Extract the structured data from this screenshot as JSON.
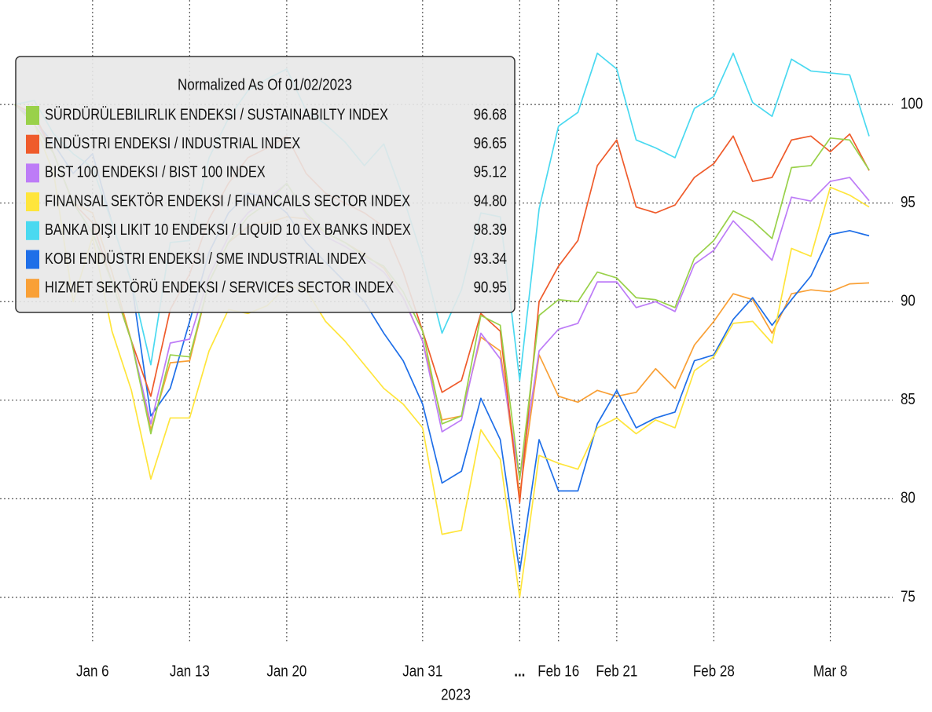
{
  "chart_data": {
    "type": "line",
    "legend_title": "Normalized As Of 01/02/2023",
    "x_label": "2023",
    "categories": [
      null,
      null,
      null,
      null,
      "Jan 6",
      null,
      null,
      null,
      null,
      "Jan 13",
      null,
      null,
      null,
      null,
      "Jan 20",
      null,
      null,
      null,
      null,
      null,
      null,
      "Jan 31",
      null,
      null,
      null,
      null,
      "...",
      null,
      "Feb 16",
      null,
      null,
      "Feb 21",
      null,
      null,
      null,
      null,
      "Feb 28",
      null,
      null,
      null,
      null,
      null,
      "Mar 8",
      null,
      null
    ],
    "ylim": [
      72.65,
      105.3
    ],
    "yticks": [
      75,
      80,
      85,
      90,
      95,
      100
    ],
    "grid": true,
    "legend": "upper left",
    "series": [
      {
        "name": "SÜRDÜRÜLEBILIRLIK ENDEKSI / SUSTAINABILTY INDEX",
        "legend_value": "96.68",
        "color": "#99d14a",
        "values": [
          100,
          99,
          97.5,
          95,
          93.5,
          91,
          88,
          83.3,
          87.3,
          87.2,
          91,
          93,
          94.3,
          95,
          96,
          94.5,
          93.5,
          93,
          92.3,
          91.8,
          90.5,
          88.5,
          83.8,
          84.2,
          89.3,
          88.8,
          81,
          89.3,
          90.1,
          90,
          91.5,
          91.2,
          90.2,
          90.1,
          89.7,
          92.2,
          93.1,
          94.6,
          94.1,
          93.2,
          96.8,
          96.9,
          98.3,
          98.2,
          96.68
        ]
      },
      {
        "name": "ENDÜSTRI ENDEKSI / INDUSTRIAL INDEX",
        "legend_value": "96.65",
        "color": "#ef5b2b",
        "values": [
          100,
          99.5,
          97.5,
          95,
          94,
          91,
          88,
          85.2,
          89.6,
          91.4,
          94.2,
          96,
          97.3,
          97.8,
          98.4,
          96.5,
          95.5,
          95,
          94.5,
          93.8,
          91.5,
          88.5,
          85.4,
          86,
          89.4,
          88.5,
          79.8,
          90,
          91.8,
          93.1,
          96.9,
          98.2,
          94.8,
          94.5,
          94.9,
          96.3,
          97,
          98.4,
          96.1,
          96.3,
          98.2,
          98.4,
          97.6,
          98.5,
          96.65
        ]
      },
      {
        "name": "BIST 100 ENDEKSI / BIST 100 INDEX",
        "legend_value": "95.12",
        "color": "#bd7cf7",
        "values": [
          100,
          99.3,
          97.5,
          95,
          93.5,
          91,
          88,
          83.8,
          87.9,
          88.1,
          91.3,
          93.3,
          94.5,
          95.2,
          96,
          94.4,
          93.3,
          92.8,
          92.2,
          91.5,
          90.2,
          88,
          83.4,
          84,
          88.4,
          87.1,
          81,
          87.5,
          88.6,
          88.9,
          91,
          91,
          89.7,
          90,
          89.5,
          91.9,
          92.6,
          94.1,
          93.1,
          92.1,
          95.3,
          95.1,
          96.1,
          96.3,
          95.12
        ]
      },
      {
        "name": "FINANSAL SEKTÖR ENDEKSI / FINANCAILS SECTOR INDEX",
        "legend_value": "94.80",
        "color": "#ffe53b",
        "values": [
          100,
          99,
          96.5,
          90,
          93.3,
          88.5,
          85.5,
          81,
          84.1,
          84.1,
          87.5,
          89.6,
          89.4,
          89.8,
          90.8,
          90.6,
          89,
          88,
          86.8,
          85.6,
          84.8,
          83.6,
          78.2,
          78.4,
          83.5,
          82,
          75,
          82.2,
          81.8,
          81.5,
          83.6,
          84.1,
          83.3,
          84,
          83.6,
          86.5,
          87.2,
          88.9,
          89,
          87.9,
          92.7,
          92.3,
          95.8,
          95.4,
          94.8
        ]
      },
      {
        "name": "BANKA DIŞI LIKIT 10 ENDEKSI / LIQUID 10 EX BANKS INDEX",
        "legend_value": "98.39",
        "color": "#4ad9f0",
        "values": [
          100,
          100.2,
          98.5,
          97.5,
          96.8,
          94,
          91,
          86.8,
          93,
          93.1,
          97.3,
          99.3,
          100.7,
          101.3,
          101.8,
          99.7,
          99,
          98.1,
          96.9,
          98,
          95.3,
          92.2,
          88.4,
          90.6,
          94.5,
          94.3,
          86,
          94.7,
          98.9,
          99.6,
          102.6,
          101.8,
          98.2,
          97.8,
          97.3,
          99.8,
          100.4,
          102.6,
          100.1,
          99.4,
          102.3,
          101.7,
          101.6,
          101.5,
          98.39
        ]
      },
      {
        "name": "KOBI ENDÜSTRI ENDEKSI / SME INDUSTRIAL INDEX",
        "legend_value": "93.34",
        "color": "#1f6fe8",
        "values": [
          100,
          99.2,
          98,
          96.5,
          97.5,
          94,
          91,
          84.2,
          85.6,
          89,
          92.5,
          94.5,
          95.5,
          95.3,
          94.5,
          93,
          92,
          91,
          90,
          88.4,
          87,
          84.8,
          80.8,
          81.4,
          85.1,
          83,
          76.3,
          83,
          80.4,
          80.4,
          83.8,
          85.5,
          83.6,
          84.1,
          84.4,
          87,
          87.3,
          89.1,
          90.2,
          88.8,
          90.1,
          91.3,
          93.4,
          93.6,
          93.34
        ]
      },
      {
        "name": "HIZMET SEKTÖRÜ ENDEKSI / SERVICES SECTOR INDEX",
        "legend_value": "90.95",
        "color": "#f9a036",
        "values": [
          100,
          99.5,
          97.5,
          95,
          94.5,
          91.5,
          88,
          83.5,
          86.9,
          87,
          91,
          93,
          93.8,
          94,
          94.3,
          94.2,
          93.5,
          93,
          92.4,
          91.7,
          90.2,
          88,
          84,
          84.2,
          88.2,
          87.5,
          80.2,
          87.3,
          85.2,
          84.9,
          85.5,
          85.2,
          85.4,
          86.6,
          85.6,
          87.8,
          89,
          90.4,
          90.1,
          88.4,
          90.4,
          90.6,
          90.5,
          90.9,
          90.95
        ]
      }
    ]
  }
}
